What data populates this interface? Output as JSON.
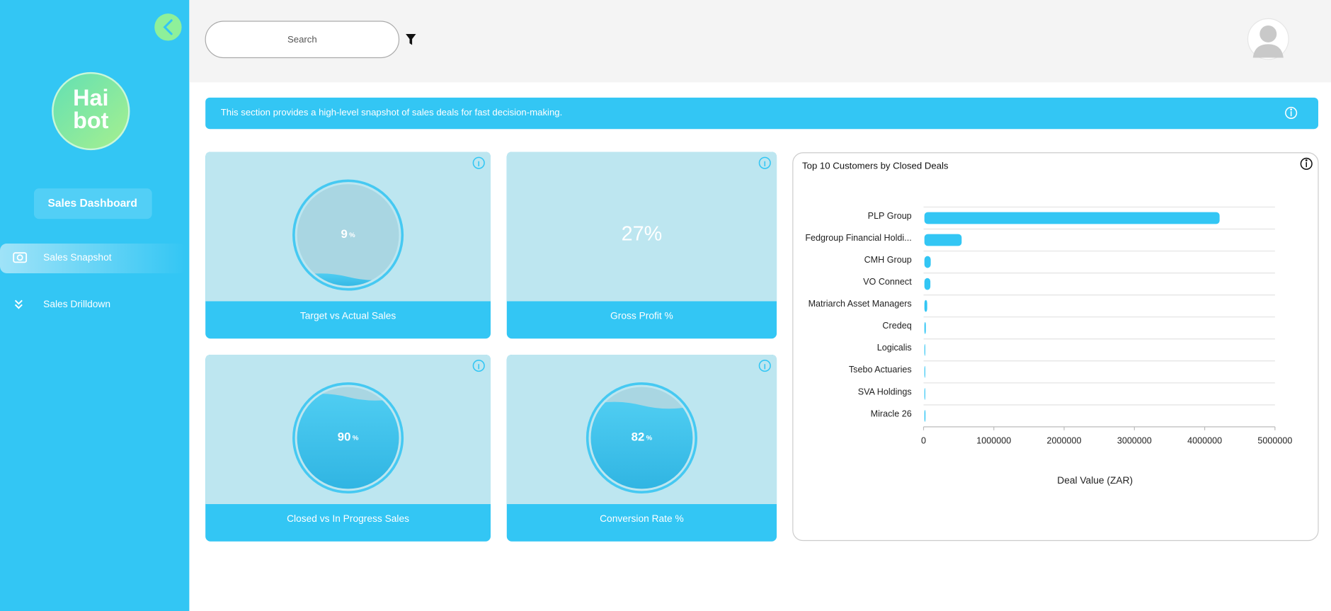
{
  "sidebar": {
    "logo_lines": [
      "Hai",
      "bot"
    ],
    "title": "Sales Dashboard",
    "nav": [
      "Sales Snapshot",
      "Sales Drilldown"
    ]
  },
  "header": {
    "search_placeholder": "Search"
  },
  "banner": "This section provides a high-level snapshot of sales deals for fast decision-making.",
  "kpis": [
    {
      "title": "Target vs Actual Sales",
      "value": 9,
      "unit": "%"
    },
    {
      "title": "Gross Profit %",
      "value": 27,
      "value_label": "27%"
    },
    {
      "title": "Closed vs In Progress Sales",
      "value": 90,
      "unit": "%"
    },
    {
      "title": "Conversion Rate %",
      "value": 82,
      "unit": "%"
    }
  ],
  "chart_data": {
    "type": "hbar",
    "title": "Top 10 Customers by Closed Deals",
    "categories": [
      "PLP Group",
      "Fedgroup Financial Holdi...",
      "CMH Group",
      "VO Connect",
      "Matriarch Asset Managers",
      "Credeq",
      "Logicalis",
      "Tsebo Actuaries",
      "SVA Holdings",
      "Miracle 26"
    ],
    "values": [
      4200000,
      530000,
      90000,
      85000,
      40000,
      20000,
      10000,
      5000,
      3000,
      15000
    ],
    "color": "#33c6f4",
    "xlabel": "Deal Value (ZAR)",
    "xlim": [
      0,
      5000000
    ],
    "xticks": [
      0,
      1000000,
      2000000,
      3000000,
      4000000,
      5000000
    ],
    "grid": true
  }
}
